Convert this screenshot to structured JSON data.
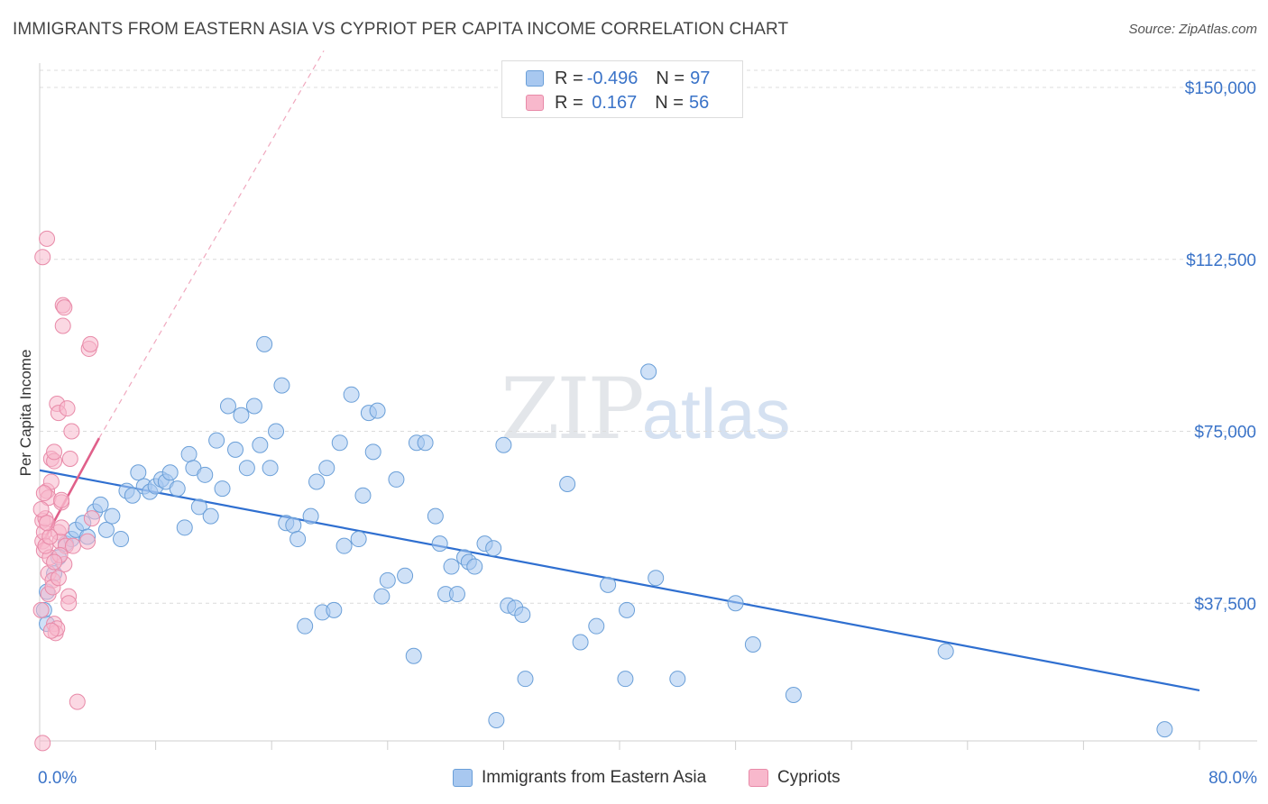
{
  "title": "IMMIGRANTS FROM EASTERN ASIA VS CYPRIOT PER CAPITA INCOME CORRELATION CHART",
  "source": "Source: ZipAtlas.com",
  "watermark": {
    "zip": "ZIP",
    "atlas": "atlas"
  },
  "legend": {
    "rows": [
      {
        "r_label": "R = ",
        "r_value": "-0.496",
        "n_label": "N = ",
        "n_value": "97",
        "color": "#a8c8f0",
        "border": "#6a9fd8"
      },
      {
        "r_label": "R = ",
        "r_value": " 0.167",
        "n_label": "N = ",
        "n_value": "56",
        "color": "#f8b8cc",
        "border": "#e88aa8"
      }
    ]
  },
  "bottom_legend": [
    {
      "label": "Immigrants from Eastern Asia",
      "color": "#a8c8f0",
      "border": "#6a9fd8"
    },
    {
      "label": "Cypriots",
      "color": "#f8b8cc",
      "border": "#e88aa8"
    }
  ],
  "chart_data": {
    "type": "scatter",
    "ylabel": "Per Capita Income",
    "xlim": [
      0,
      80
    ],
    "ylim": [
      0,
      155000
    ],
    "x_tick_labels": [
      {
        "value": 0,
        "label": "0.0%"
      },
      {
        "value": 80,
        "label": "80.0%"
      }
    ],
    "y_ticks": [
      {
        "value": 37500,
        "label": "$37,500"
      },
      {
        "value": 75000,
        "label": "$75,000"
      },
      {
        "value": 112500,
        "label": "$112,500"
      },
      {
        "value": 150000,
        "label": "$150,000"
      }
    ],
    "grid": "horizontal dashed",
    "series": [
      {
        "name": "Immigrants from Eastern Asia",
        "color": "#6a9fd8",
        "fill": "#a8c8f0",
        "trend": {
          "x": [
            0,
            80
          ],
          "y": [
            66500,
            18500
          ],
          "color": "#2f6fd0"
        },
        "points": [
          [
            0.3,
            36000
          ],
          [
            0.5,
            33000
          ],
          [
            0.5,
            40000
          ],
          [
            1.0,
            44000
          ],
          [
            1.3,
            47500
          ],
          [
            1.8,
            50500
          ],
          [
            2.2,
            51500
          ],
          [
            2.5,
            53500
          ],
          [
            3.0,
            55000
          ],
          [
            3.3,
            52000
          ],
          [
            3.8,
            57500
          ],
          [
            4.2,
            59000
          ],
          [
            4.6,
            53500
          ],
          [
            5.0,
            56500
          ],
          [
            5.6,
            51500
          ],
          [
            6.0,
            62000
          ],
          [
            6.4,
            61000
          ],
          [
            6.8,
            66000
          ],
          [
            7.2,
            63000
          ],
          [
            7.6,
            61800
          ],
          [
            8.0,
            63000
          ],
          [
            8.4,
            64500
          ],
          [
            8.7,
            64000
          ],
          [
            9.0,
            66000
          ],
          [
            9.5,
            62500
          ],
          [
            10.0,
            54000
          ],
          [
            10.3,
            70000
          ],
          [
            10.6,
            67000
          ],
          [
            11.0,
            58500
          ],
          [
            11.4,
            65500
          ],
          [
            11.8,
            56500
          ],
          [
            12.2,
            73000
          ],
          [
            12.6,
            62500
          ],
          [
            13.0,
            80500
          ],
          [
            13.5,
            71000
          ],
          [
            13.9,
            78500
          ],
          [
            14.3,
            67000
          ],
          [
            14.8,
            80500
          ],
          [
            15.2,
            72000
          ],
          [
            15.5,
            94000
          ],
          [
            15.9,
            67000
          ],
          [
            16.3,
            75000
          ],
          [
            16.7,
            85000
          ],
          [
            17.0,
            55000
          ],
          [
            17.5,
            54500
          ],
          [
            17.8,
            51500
          ],
          [
            18.3,
            32500
          ],
          [
            18.7,
            56500
          ],
          [
            19.1,
            64000
          ],
          [
            19.5,
            35500
          ],
          [
            19.8,
            67000
          ],
          [
            20.3,
            36000
          ],
          [
            20.7,
            72500
          ],
          [
            21.0,
            50000
          ],
          [
            21.5,
            83000
          ],
          [
            22.0,
            51500
          ],
          [
            22.3,
            61000
          ],
          [
            22.7,
            79000
          ],
          [
            23.0,
            70500
          ],
          [
            23.3,
            79500
          ],
          [
            23.6,
            39000
          ],
          [
            24.0,
            42500
          ],
          [
            24.6,
            64500
          ],
          [
            25.2,
            43500
          ],
          [
            25.8,
            26000
          ],
          [
            26.0,
            72500
          ],
          [
            26.6,
            72500
          ],
          [
            27.3,
            56500
          ],
          [
            27.6,
            50500
          ],
          [
            28.0,
            39500
          ],
          [
            28.4,
            45500
          ],
          [
            28.8,
            39500
          ],
          [
            29.3,
            47500
          ],
          [
            29.6,
            46500
          ],
          [
            30.0,
            45500
          ],
          [
            30.7,
            50500
          ],
          [
            31.3,
            49500
          ],
          [
            31.5,
            12000
          ],
          [
            32.0,
            72000
          ],
          [
            32.3,
            37000
          ],
          [
            32.8,
            36500
          ],
          [
            33.3,
            35000
          ],
          [
            33.5,
            21000
          ],
          [
            36.4,
            63500
          ],
          [
            37.3,
            29000
          ],
          [
            38.4,
            32500
          ],
          [
            39.2,
            41500
          ],
          [
            40.4,
            21000
          ],
          [
            40.5,
            36000
          ],
          [
            42.0,
            88000
          ],
          [
            42.5,
            43000
          ],
          [
            44.0,
            21000
          ],
          [
            48.0,
            37500
          ],
          [
            49.2,
            28500
          ],
          [
            52.0,
            17500
          ],
          [
            62.5,
            27000
          ],
          [
            77.6,
            10000
          ]
        ]
      },
      {
        "name": "Cypriots",
        "color": "#e88aa8",
        "fill": "#f8b8cc",
        "trend": {
          "x": [
            0,
            4.1
          ],
          "y": [
            49500,
            73500
          ],
          "color": "#e0608a",
          "extended": {
            "x": [
              4.1,
              19.6
            ],
            "y": [
              73500,
              158000
            ]
          }
        },
        "points": [
          [
            0.1,
            36000
          ],
          [
            0.2,
            51000
          ],
          [
            0.2,
            55500
          ],
          [
            0.3,
            53000
          ],
          [
            0.3,
            49000
          ],
          [
            0.4,
            56000
          ],
          [
            0.5,
            62000
          ],
          [
            0.6,
            60500
          ],
          [
            0.6,
            44000
          ],
          [
            0.7,
            47500
          ],
          [
            0.8,
            64000
          ],
          [
            0.8,
            69000
          ],
          [
            0.9,
            42500
          ],
          [
            1.0,
            68500
          ],
          [
            1.0,
            70500
          ],
          [
            1.0,
            33000
          ],
          [
            1.1,
            31000
          ],
          [
            1.2,
            32000
          ],
          [
            1.2,
            81000
          ],
          [
            1.3,
            79000
          ],
          [
            1.3,
            53000
          ],
          [
            1.4,
            51000
          ],
          [
            1.5,
            59500
          ],
          [
            1.5,
            60000
          ],
          [
            1.5,
            54000
          ],
          [
            1.6,
            98000
          ],
          [
            1.6,
            102500
          ],
          [
            1.7,
            102000
          ],
          [
            1.7,
            46000
          ],
          [
            1.8,
            50000
          ],
          [
            1.9,
            80000
          ],
          [
            2.0,
            39000
          ],
          [
            2.0,
            37500
          ],
          [
            2.1,
            69000
          ],
          [
            2.2,
            75000
          ],
          [
            2.3,
            50000
          ],
          [
            2.6,
            16000
          ],
          [
            3.4,
            93000
          ],
          [
            3.5,
            94000
          ],
          [
            3.6,
            56000
          ],
          [
            3.3,
            51000
          ],
          [
            0.2,
            113000
          ],
          [
            0.5,
            117000
          ],
          [
            0.2,
            7000
          ],
          [
            1.9,
            5000
          ],
          [
            0.8,
            31500
          ],
          [
            0.6,
            39500
          ],
          [
            0.9,
            41000
          ],
          [
            1.3,
            43000
          ],
          [
            0.4,
            50000
          ],
          [
            0.1,
            58000
          ],
          [
            0.3,
            61500
          ],
          [
            0.7,
            52000
          ],
          [
            1.4,
            48000
          ],
          [
            0.5,
            55000
          ],
          [
            1.0,
            46500
          ]
        ]
      }
    ]
  }
}
